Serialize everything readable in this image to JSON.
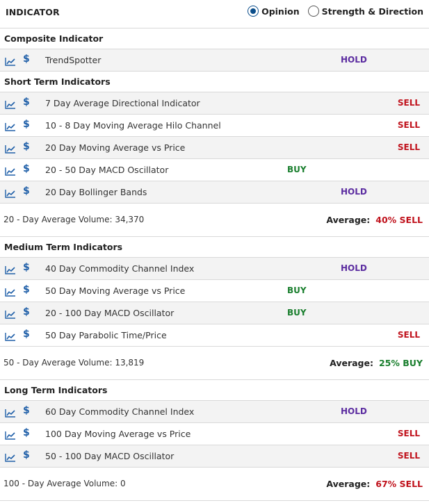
{
  "header": {
    "title": "INDICATOR",
    "options": [
      {
        "label": "Opinion",
        "selected": true
      },
      {
        "label": "Strength & Direction",
        "selected": false
      }
    ]
  },
  "icons": {
    "chart": "line-chart-icon",
    "dollar": "$"
  },
  "colors": {
    "buy": "#1a7f2e",
    "sell": "#c0121c",
    "hold": "#5b2ca0",
    "accent": "#1f5fa8"
  },
  "sections": [
    {
      "title": "Composite Indicator",
      "rows": [
        {
          "name": "TrendSpotter",
          "signal": "HOLD"
        }
      ]
    },
    {
      "title": "Short Term Indicators",
      "rows": [
        {
          "name": "7 Day Average Directional Indicator",
          "signal": "SELL"
        },
        {
          "name": "10 - 8 Day Moving Average Hilo Channel",
          "signal": "SELL"
        },
        {
          "name": "20 Day Moving Average vs Price",
          "signal": "SELL"
        },
        {
          "name": "20 - 50 Day MACD Oscillator",
          "signal": "BUY"
        },
        {
          "name": "20 Day Bollinger Bands",
          "signal": "HOLD"
        }
      ],
      "summary": {
        "volume_label": "20 - Day Average Volume: 34,370",
        "average_label": "Average:",
        "average_value": "40% SELL",
        "average_type": "sell"
      }
    },
    {
      "title": "Medium Term Indicators",
      "rows": [
        {
          "name": "40 Day Commodity Channel Index",
          "signal": "HOLD"
        },
        {
          "name": "50 Day Moving Average vs Price",
          "signal": "BUY"
        },
        {
          "name": "20 - 100 Day MACD Oscillator",
          "signal": "BUY"
        },
        {
          "name": "50 Day Parabolic Time/Price",
          "signal": "SELL"
        }
      ],
      "summary": {
        "volume_label": "50 - Day Average Volume: 13,819",
        "average_label": "Average:",
        "average_value": "25% BUY",
        "average_type": "buy"
      }
    },
    {
      "title": "Long Term Indicators",
      "rows": [
        {
          "name": "60 Day Commodity Channel Index",
          "signal": "HOLD"
        },
        {
          "name": "100 Day Moving Average vs Price",
          "signal": "SELL"
        },
        {
          "name": "50 - 100 Day MACD Oscillator",
          "signal": "SELL"
        }
      ],
      "summary": {
        "volume_label": "100 - Day Average Volume: 0",
        "average_label": "Average:",
        "average_value": "67% SELL",
        "average_type": "sell"
      }
    }
  ]
}
